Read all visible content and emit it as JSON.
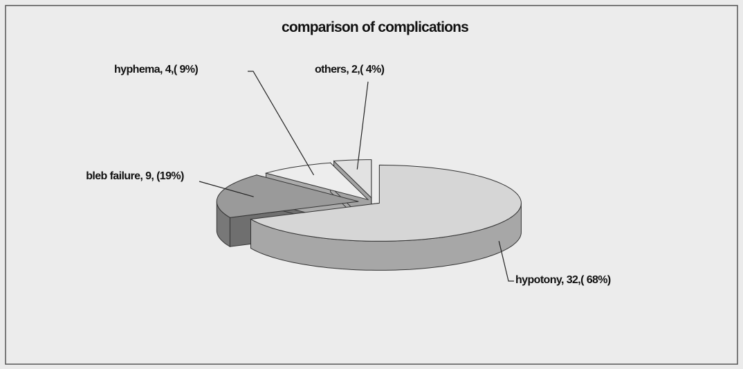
{
  "chart_data": {
    "type": "pie3d",
    "title": "comparison of complications",
    "categories": [
      "hypotony",
      "bleb failure",
      "hyphema",
      "others"
    ],
    "values": [
      32,
      9,
      4,
      2
    ],
    "value_labels": [
      "hypotony, 32,( 68%)",
      "bleb failure, 9, (19%)",
      "hyphema, 4,( 9%)",
      "others, 2,( 4%)"
    ],
    "colors": [
      "#d6d6d6",
      "#9a9a9a",
      "#ededed",
      "#e2e2e2"
    ]
  }
}
